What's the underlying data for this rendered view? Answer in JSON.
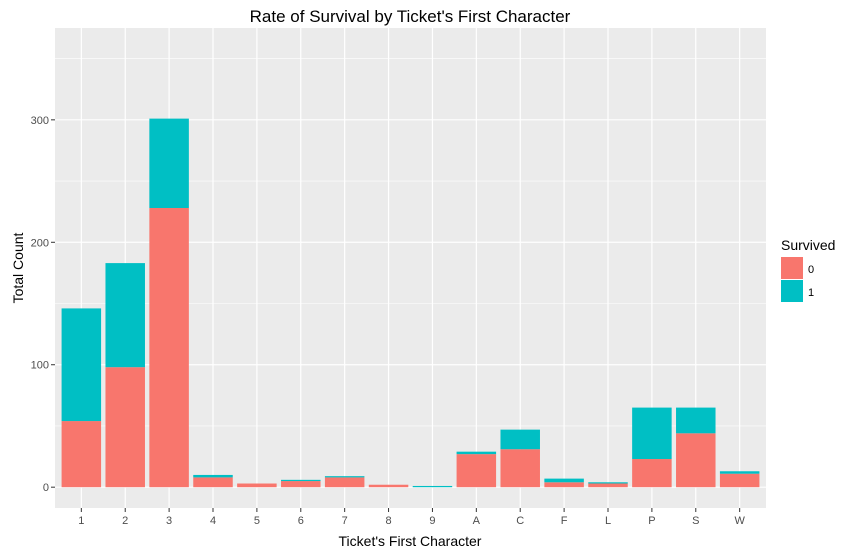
{
  "chart_data": {
    "type": "bar",
    "stacked": true,
    "title": "Rate of Survival by Ticket's First Character",
    "xlabel": "Ticket's First Character",
    "ylabel": "Total Count",
    "categories": [
      "1",
      "2",
      "3",
      "4",
      "5",
      "6",
      "7",
      "8",
      "9",
      "A",
      "C",
      "F",
      "L",
      "P",
      "S",
      "W"
    ],
    "series": [
      {
        "name": "0",
        "color": "#F8766D",
        "values": [
          54,
          98,
          228,
          8,
          3,
          5,
          8,
          2,
          0,
          27,
          31,
          4,
          3,
          23,
          44,
          11
        ]
      },
      {
        "name": "1",
        "color": "#00BFC4",
        "values": [
          92,
          85,
          73,
          2,
          0,
          1,
          1,
          0,
          1,
          2,
          16,
          3,
          1,
          42,
          21,
          2
        ]
      }
    ],
    "yticks": [
      0,
      100,
      200,
      300
    ],
    "ylim": [
      -17,
      375
    ],
    "grid": true,
    "legend": {
      "title": "Survived",
      "position": "right"
    },
    "background": "#EBEBEB",
    "gridcolor": "#FFFFFF"
  }
}
